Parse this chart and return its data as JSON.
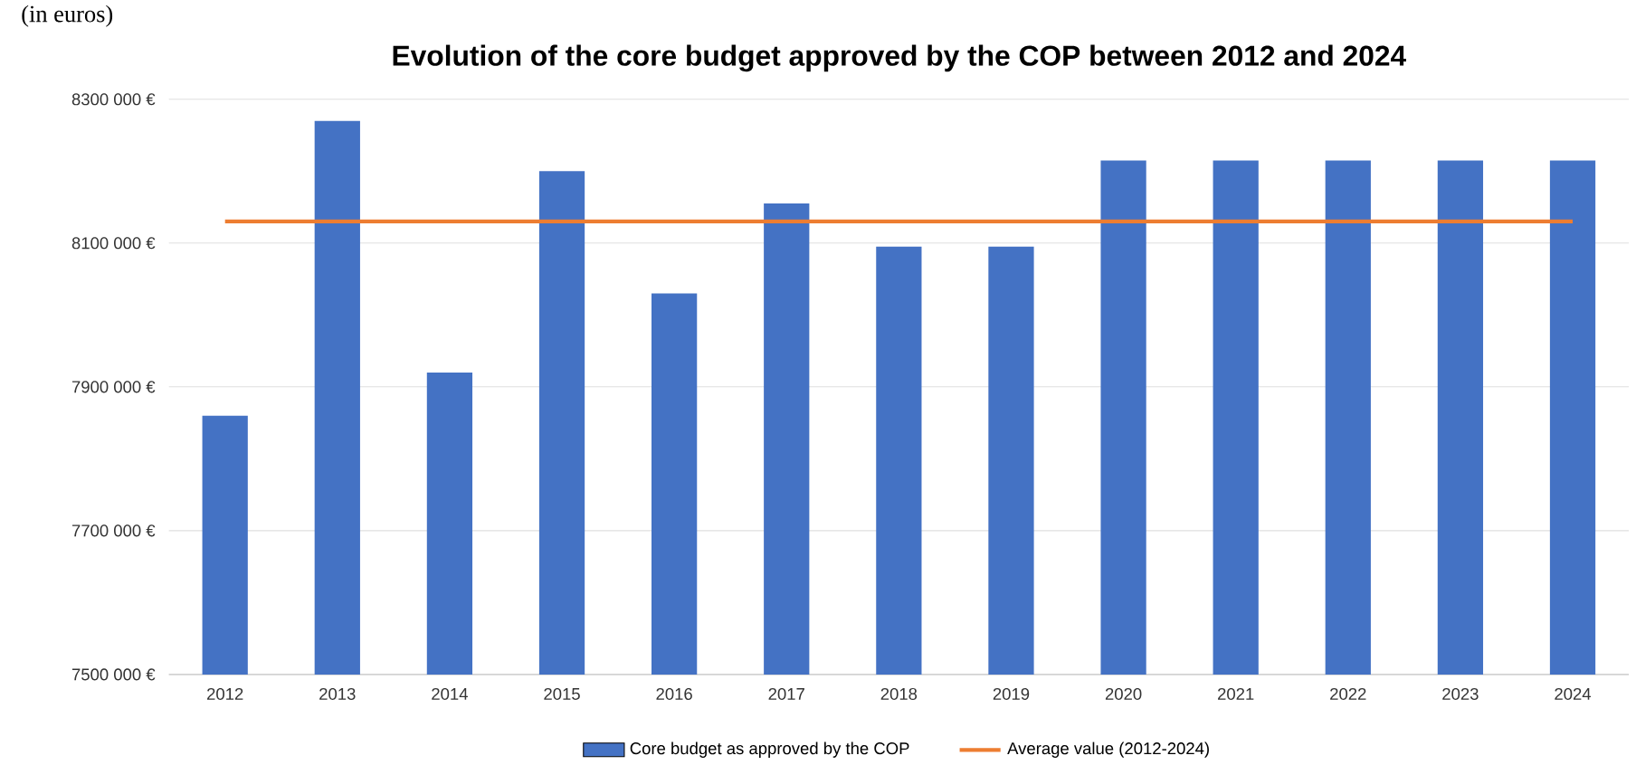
{
  "chart_data": {
    "type": "bar",
    "title": "Evolution of the core budget approved by the COP between 2012 and 2024",
    "annotations": [
      "(in euros)"
    ],
    "categories": [
      "2012",
      "2013",
      "2014",
      "2015",
      "2016",
      "2017",
      "2018",
      "2019",
      "2020",
      "2021",
      "2022",
      "2023",
      "2024"
    ],
    "series": [
      {
        "name": "Core budget as approved by the COP",
        "color": "#4472c4",
        "values": [
          7860000,
          8270000,
          7920000,
          8200000,
          8030000,
          8155000,
          8095000,
          8095000,
          8215000,
          8215000,
          8215000,
          8215000,
          8215000
        ]
      },
      {
        "name": "Average value (2012-2024)",
        "type": "line",
        "color": "#ed7d31",
        "values": [
          8130000,
          8130000,
          8130000,
          8130000,
          8130000,
          8130000,
          8130000,
          8130000,
          8130000,
          8130000,
          8130000,
          8130000,
          8130000
        ]
      }
    ],
    "ylim": [
      7500000,
      8300000
    ],
    "yticks": [
      {
        "value": 7500000,
        "label": "7500 000 €"
      },
      {
        "value": 7700000,
        "label": "7700 000 €"
      },
      {
        "value": 7900000,
        "label": "7900 000 €"
      },
      {
        "value": 8100000,
        "label": "8100 000 €"
      },
      {
        "value": 8300000,
        "label": "8300 000 €"
      }
    ],
    "grid": "y",
    "legend": "bottom"
  }
}
